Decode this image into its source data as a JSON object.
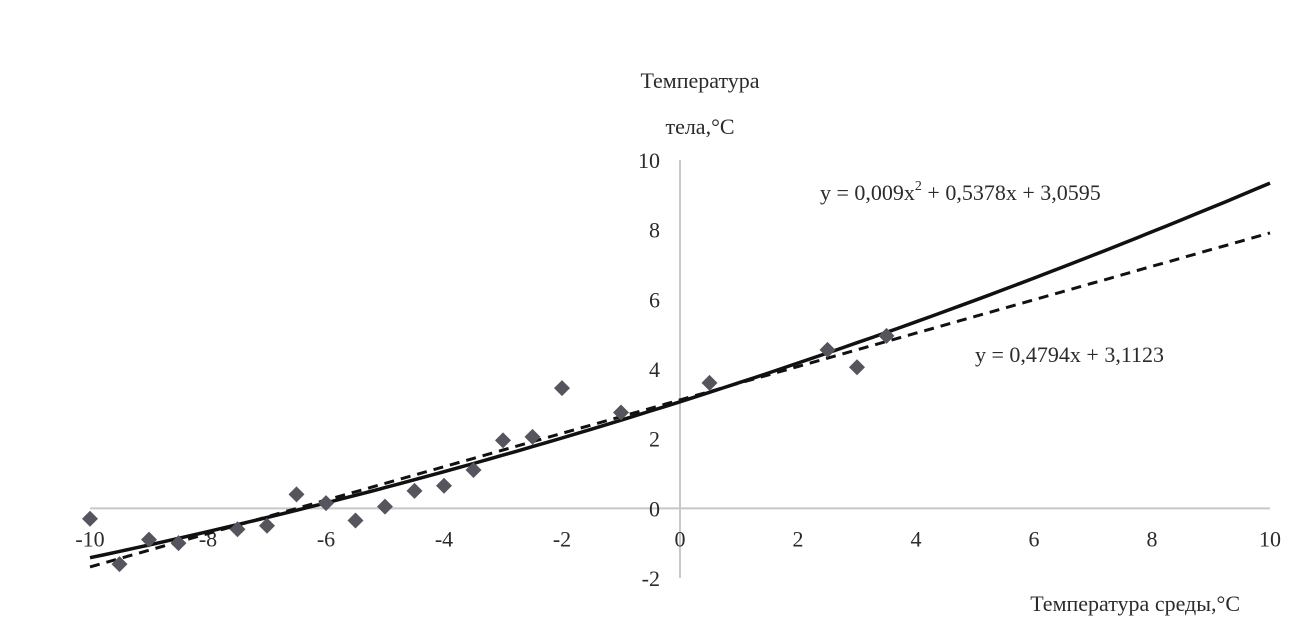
{
  "chart_data": {
    "type": "scatter",
    "ylabel_line1": "Температура",
    "ylabel_line2": "тела,°С",
    "xlabel": "Температура среды,°С",
    "xlim": [
      -10,
      10
    ],
    "ylim": [
      -2,
      10
    ],
    "x_ticks": [
      "-10",
      "-8",
      "-6",
      "-4",
      "-2",
      "0",
      "2",
      "4",
      "6",
      "8",
      "10"
    ],
    "y_ticks": [
      "-2",
      "0",
      "2",
      "4",
      "6",
      "8",
      "10"
    ],
    "grid": false,
    "points": [
      {
        "x": -10,
        "y": -0.3
      },
      {
        "x": -9.5,
        "y": -1.6
      },
      {
        "x": -9,
        "y": -0.9
      },
      {
        "x": -8.5,
        "y": -1.0
      },
      {
        "x": -7.5,
        "y": -0.6
      },
      {
        "x": -7,
        "y": -0.5
      },
      {
        "x": -6.5,
        "y": 0.4
      },
      {
        "x": -6,
        "y": 0.15
      },
      {
        "x": -5.5,
        "y": -0.35
      },
      {
        "x": -5,
        "y": 0.05
      },
      {
        "x": -4.5,
        "y": 0.5
      },
      {
        "x": -4,
        "y": 0.65
      },
      {
        "x": -3.5,
        "y": 1.1
      },
      {
        "x": -3,
        "y": 1.95
      },
      {
        "x": -2.5,
        "y": 2.05
      },
      {
        "x": -2,
        "y": 3.45
      },
      {
        "x": -1,
        "y": 2.75
      },
      {
        "x": 0.5,
        "y": 3.6
      },
      {
        "x": 2.5,
        "y": 4.55
      },
      {
        "x": 3,
        "y": 4.05
      },
      {
        "x": 3.5,
        "y": 4.95
      }
    ],
    "marker_color": "#55555e",
    "trendlines": [
      {
        "kind": "polynomial",
        "coefficients": [
          3.0595,
          0.5378,
          0.009
        ],
        "style": "solid",
        "equation_prefix": "y = 0,009x",
        "equation_exponent": "2",
        "equation_suffix": " + 0,5378x + 3,0595"
      },
      {
        "kind": "linear",
        "coefficients": [
          3.1123,
          0.4794
        ],
        "style": "dashed",
        "equation": "y = 0,4794x + 3,1123"
      }
    ]
  }
}
